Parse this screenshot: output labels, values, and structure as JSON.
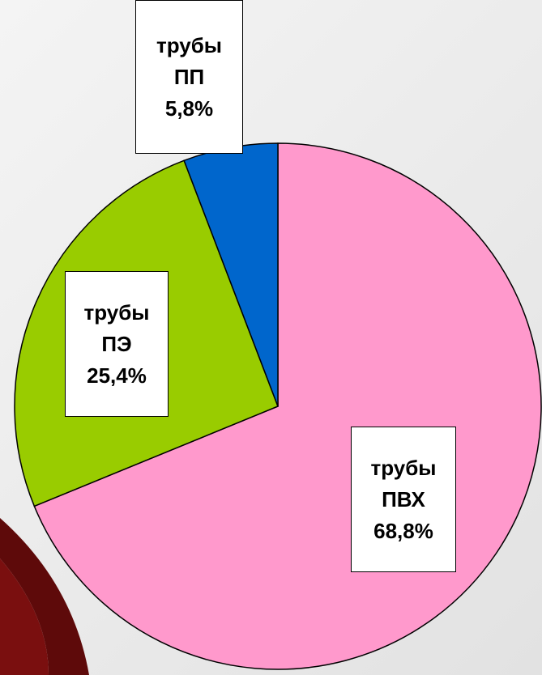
{
  "chart_data": {
    "type": "pie",
    "categories": [
      "трубы ПВХ",
      "трубы ПЭ",
      "трубы ПП"
    ],
    "values": [
      68.8,
      25.4,
      5.8
    ],
    "value_labels": [
      "68,8%",
      "25,4%",
      "5,8%"
    ],
    "colors": [
      "#ff99cc",
      "#99cc00",
      "#0066cc"
    ]
  }
}
